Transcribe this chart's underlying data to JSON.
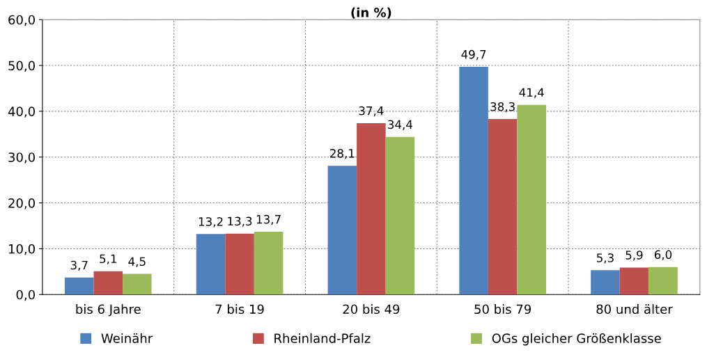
{
  "chart_data": {
    "type": "bar",
    "title": "(in %)",
    "categories": [
      "bis 6 Jahre",
      "7 bis 19",
      "20 bis 49",
      "50 bis 79",
      "80 und älter"
    ],
    "series": [
      {
        "name": "Weinähr",
        "color": "#4f81bd",
        "values": [
          3.7,
          13.2,
          28.1,
          49.7,
          5.3
        ],
        "value_labels": [
          "3,7",
          "13,2",
          "28,1",
          "49,7",
          "5,3"
        ]
      },
      {
        "name": "Rheinland-Pfalz",
        "color": "#c0504d",
        "values": [
          5.1,
          13.3,
          37.4,
          38.3,
          5.9
        ],
        "value_labels": [
          "5,1",
          "13,3",
          "37,4",
          "38,3",
          "5,9"
        ]
      },
      {
        "name": "OGs gleicher Größenklasse",
        "color": "#9bbb59",
        "values": [
          4.5,
          13.7,
          34.4,
          41.4,
          6.0
        ],
        "value_labels": [
          "4,5",
          "13,7",
          "34,4",
          "41,4",
          "6,0"
        ]
      }
    ],
    "ylim": [
      0,
      60
    ],
    "yticks": [
      {
        "value": 0,
        "label": "0,0"
      },
      {
        "value": 10,
        "label": "10,0"
      },
      {
        "value": 20,
        "label": "20,0"
      },
      {
        "value": 30,
        "label": "30,0"
      },
      {
        "value": 40,
        "label": "40,0"
      },
      {
        "value": 50,
        "label": "50,0"
      },
      {
        "value": 60,
        "label": "60,0"
      }
    ],
    "grid": true,
    "legend": "bottom"
  }
}
